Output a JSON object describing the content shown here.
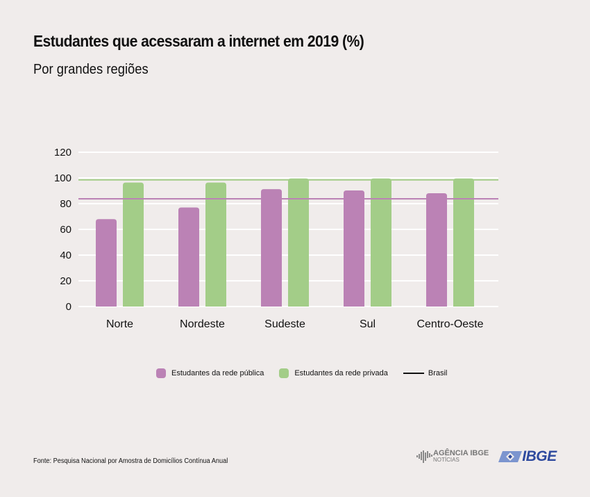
{
  "header": {
    "title": "Estudantes que acessaram a internet em 2019 (%)",
    "subtitle": "Por grandes regiões"
  },
  "chart_data": {
    "type": "bar",
    "title": "Estudantes que acessaram a internet em 2019 (%)",
    "subtitle": "Por grandes regiões",
    "xlabel": "",
    "ylabel": "",
    "categories": [
      "Norte",
      "Nordeste",
      "Sudeste",
      "Sul",
      "Centro-Oeste"
    ],
    "series": [
      {
        "name": "Estudantes da rede pública",
        "color": "#bb82b5",
        "values": [
          68,
          77,
          91.3,
          90.3,
          88.1
        ]
      },
      {
        "name": "Estudantes da rede privada",
        "color": "#a3cd88",
        "values": [
          96.4,
          96.4,
          99.6,
          99.6,
          99.6
        ]
      }
    ],
    "reference_lines": [
      {
        "name": "Brasil (rede pública)",
        "color": "#bb82b5",
        "value": 83.8
      },
      {
        "name": "Brasil (rede privada)",
        "color": "#a3cd88",
        "value": 98.5
      }
    ],
    "yticks": [
      0,
      20,
      40,
      60,
      80,
      100,
      120
    ],
    "ylim": [
      0,
      120
    ],
    "grid": true,
    "legend_position": "bottom",
    "legend": [
      {
        "label": "Estudantes da rede pública",
        "type": "swatch",
        "color": "#bb82b5"
      },
      {
        "label": "Estudantes da rede privada",
        "type": "swatch",
        "color": "#a3cd88"
      },
      {
        "label": "Brasil",
        "type": "line",
        "color": "#111111"
      }
    ]
  },
  "footer": {
    "source": "Fonte: Pesquisa Nacional por Amostra de Domicílios Contínua Anual",
    "logo_agencia_top": "AGÊNCIA IBGE",
    "logo_agencia_bottom": "NOTÍCIAS",
    "logo_ibge": "IBGE"
  }
}
